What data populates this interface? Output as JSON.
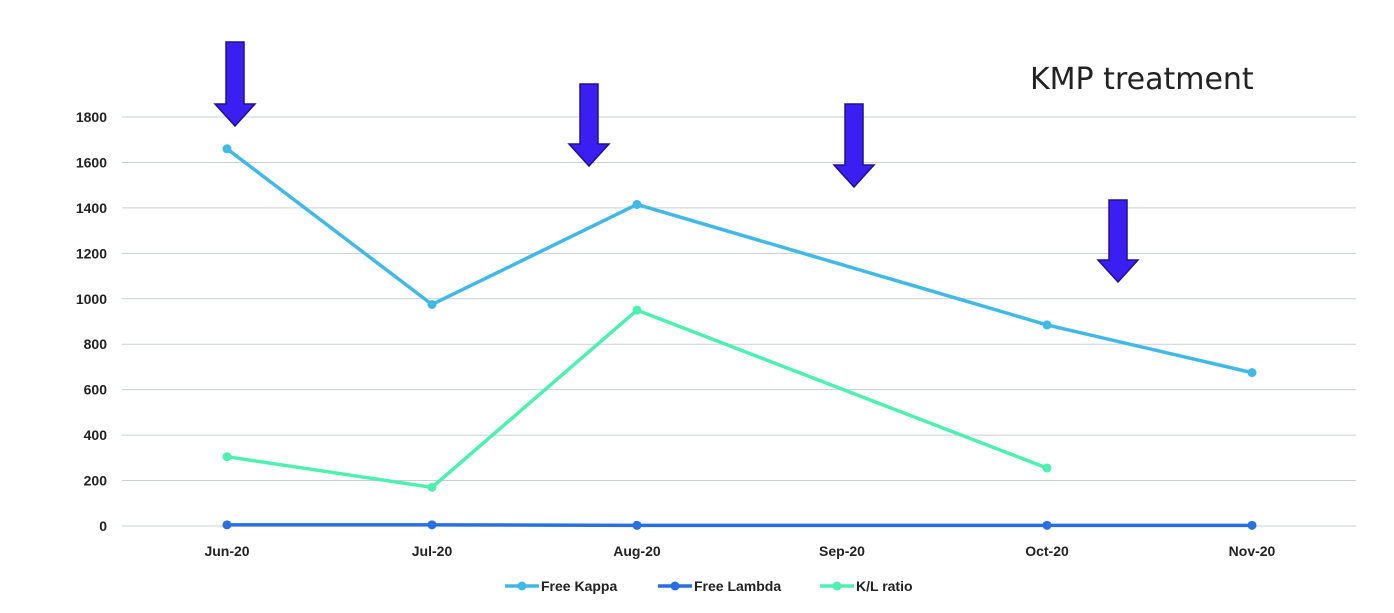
{
  "chart_data": {
    "type": "line",
    "annotation": "KMP treatment",
    "categories": [
      "Jun-20",
      "Jul-20",
      "Aug-20",
      "Sep-20",
      "Oct-20",
      "Nov-20"
    ],
    "series": [
      {
        "name": "Free Kappa",
        "color": "#41b8e6",
        "values": [
          1660,
          975,
          1415,
          null,
          885,
          675
        ]
      },
      {
        "name": "Free Lambda",
        "color": "#2a6fe0",
        "values": [
          5,
          5,
          3,
          null,
          3,
          3
        ]
      },
      {
        "name": "K/L ratio",
        "color": "#4ef0b0",
        "values": [
          305,
          170,
          950,
          null,
          255,
          null
        ]
      }
    ],
    "ylim": [
      0,
      1800
    ],
    "yticks": [
      0,
      200,
      400,
      600,
      800,
      1000,
      1200,
      1400,
      1600,
      1800
    ],
    "grid": true,
    "legend": "bottom",
    "markers": {
      "type": "treatment-arrow",
      "color": "#3a1ef2",
      "count": 4
    }
  }
}
